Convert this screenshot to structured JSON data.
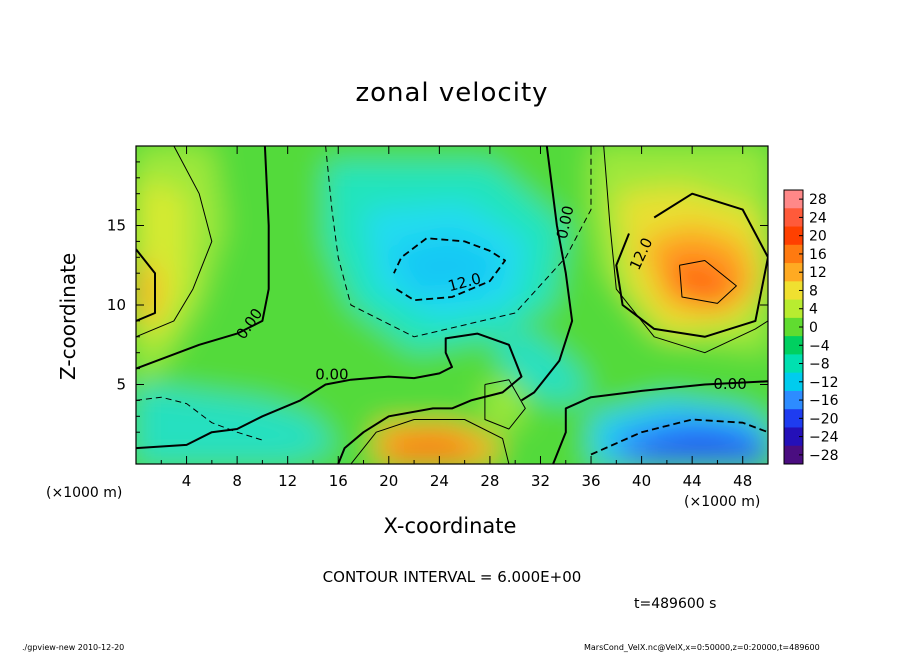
{
  "chart_data": {
    "type": "heatmap",
    "title": "zonal velocity",
    "xlabel": "X-coordinate",
    "ylabel": "Z-coordinate",
    "x_unit_label": "(×1000 m)",
    "xlim": [
      0,
      50
    ],
    "ylim": [
      0,
      20
    ],
    "x_ticks": [
      "4",
      "8",
      "12",
      "16",
      "20",
      "24",
      "28",
      "32",
      "36",
      "40",
      "44",
      "48"
    ],
    "y_ticks": [
      "5",
      "10",
      "15"
    ],
    "colorbar": {
      "levels": [
        "28",
        "24",
        "20",
        "16",
        "12",
        "8",
        "4",
        "0",
        "−4",
        "−8",
        "−12",
        "−16",
        "−20",
        "−24",
        "−28"
      ],
      "colors": [
        "#ff8888",
        "#ff5a3a",
        "#ff4000",
        "#ff7a10",
        "#ffaa22",
        "#f0e030",
        "#b8ec30",
        "#60dc30",
        "#00d060",
        "#00e0b0",
        "#00ccee",
        "#2d8cff",
        "#1e3cf0",
        "#2410b8",
        "#4a0d80"
      ]
    },
    "contour_labels": [
      "0.00",
      "0.00",
      "0.00",
      "0.00",
      "12.0",
      "12.0"
    ],
    "features": [
      {
        "kind": "max",
        "x": 45,
        "z": 11.5,
        "value": 18
      },
      {
        "kind": "max",
        "x": 0,
        "z": 10.5,
        "value": 12
      },
      {
        "kind": "max",
        "x": 24,
        "z": 1,
        "value": 16
      },
      {
        "kind": "min",
        "x": 22,
        "z": 12,
        "value": -12
      },
      {
        "kind": "min",
        "x": 46,
        "z": 1,
        "value": -18
      }
    ]
  },
  "contour_interval_text": "CONTOUR INTERVAL = 6.000E+00",
  "time_text": "t=489600 s",
  "footer": {
    "left": "./gpview-new  2010-12-20",
    "right": "MarsCond_VelX.nc@VelX,x=0:50000,z=0:20000,t=489600"
  }
}
